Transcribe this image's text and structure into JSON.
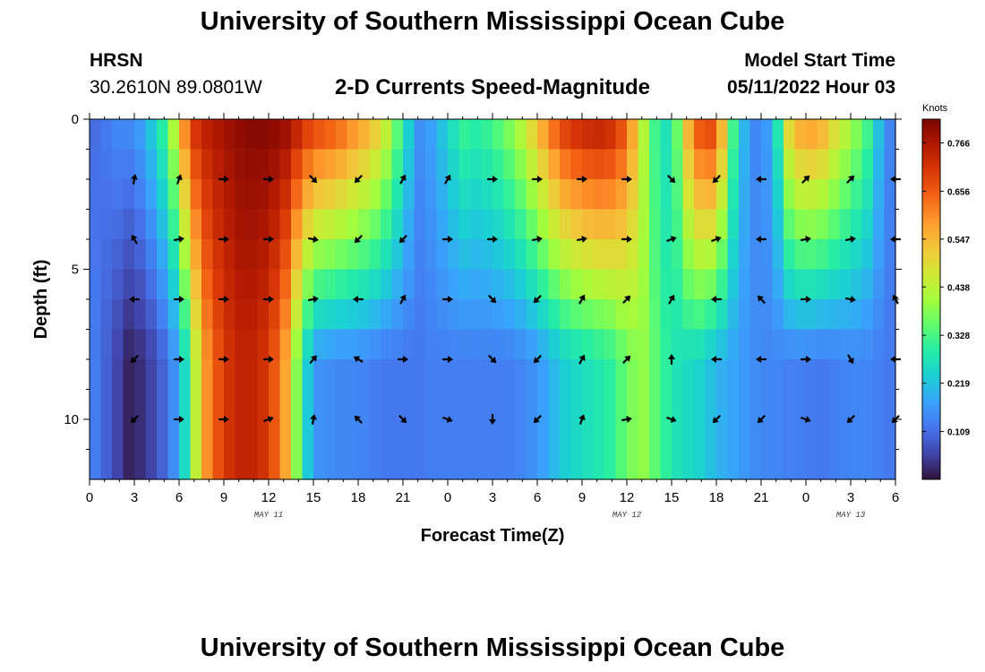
{
  "header": {
    "title": "University of Southern Mississippi Ocean Cube",
    "station": "HRSN",
    "coordinates": "30.2610N  89.0801W",
    "subtitle": "2-D Currents Speed-Magnitude",
    "start_label": "Model Start Time",
    "start_value": "05/11/2022 Hour 03"
  },
  "footer": {
    "title": "University of Southern Mississippi Ocean Cube"
  },
  "colors": {
    "palette": [
      "#30123b",
      "#4145ab",
      "#4675ed",
      "#39a2fc",
      "#1bcfd4",
      "#24eca6",
      "#61fc6c",
      "#a4fc3b",
      "#d1e834",
      "#f3c63a",
      "#fe9b2d",
      "#f36315",
      "#d93806",
      "#b11901",
      "#7a0403"
    ],
    "arrow": "#000000",
    "frame": "#000000"
  },
  "chart_data": {
    "type": "heatmap",
    "title": "2-D Currents Speed-Magnitude",
    "xlabel": "Forecast Time(Z)",
    "ylabel": "Depth (ft)",
    "x_range_hours": [
      0,
      54
    ],
    "ylim": [
      0,
      12
    ],
    "x_ticks": [
      {
        "hour": 0,
        "label": "0"
      },
      {
        "hour": 3,
        "label": "3"
      },
      {
        "hour": 6,
        "label": "6"
      },
      {
        "hour": 9,
        "label": "9"
      },
      {
        "hour": 12,
        "label": "12"
      },
      {
        "hour": 15,
        "label": "15"
      },
      {
        "hour": 18,
        "label": "18"
      },
      {
        "hour": 21,
        "label": "21"
      },
      {
        "hour": 24,
        "label": "0"
      },
      {
        "hour": 27,
        "label": "3"
      },
      {
        "hour": 30,
        "label": "6"
      },
      {
        "hour": 33,
        "label": "9"
      },
      {
        "hour": 36,
        "label": "12"
      },
      {
        "hour": 39,
        "label": "15"
      },
      {
        "hour": 42,
        "label": "18"
      },
      {
        "hour": 45,
        "label": "21"
      },
      {
        "hour": 48,
        "label": "0"
      },
      {
        "hour": 51,
        "label": "3"
      },
      {
        "hour": 54,
        "label": "6"
      }
    ],
    "y_ticks": [
      {
        "depth": 0,
        "label": "0"
      },
      {
        "depth": 5,
        "label": "5"
      },
      {
        "depth": 10,
        "label": "10"
      }
    ],
    "date_labels": [
      {
        "hour": 12,
        "label": "MAY 11"
      },
      {
        "hour": 36,
        "label": "MAY 12"
      },
      {
        "hour": 51,
        "label": "MAY 13"
      }
    ],
    "colorbar": {
      "title": "Knots",
      "min": 0.0,
      "max": 0.82,
      "ticks": [
        0.109,
        0.219,
        0.328,
        0.438,
        0.547,
        0.656,
        0.766
      ]
    },
    "speed_profile": {
      "hours": [
        0,
        1,
        2,
        2.5,
        3,
        4,
        5,
        6,
        6.5,
        7,
        8,
        9,
        10,
        11,
        12,
        13,
        13.5,
        14,
        14.5,
        15,
        16,
        17,
        18,
        19,
        20,
        21,
        22,
        23,
        24,
        25,
        26,
        27,
        28,
        29,
        30,
        31,
        32,
        33,
        34,
        35,
        36,
        37,
        38,
        39,
        40,
        41,
        42,
        43,
        44,
        45,
        46,
        47,
        48,
        49,
        50,
        51,
        52,
        53,
        54
      ],
      "surface": [
        0.1,
        0.12,
        0.15,
        0.15,
        0.15,
        0.22,
        0.32,
        0.5,
        0.66,
        0.72,
        0.76,
        0.78,
        0.8,
        0.81,
        0.81,
        0.8,
        0.78,
        0.75,
        0.72,
        0.7,
        0.68,
        0.65,
        0.6,
        0.55,
        0.45,
        0.3,
        0.15,
        0.18,
        0.25,
        0.32,
        0.3,
        0.33,
        0.38,
        0.45,
        0.55,
        0.65,
        0.72,
        0.75,
        0.76,
        0.74,
        0.66,
        0.45,
        0.3,
        0.25,
        0.55,
        0.7,
        0.7,
        0.35,
        0.18,
        0.12,
        0.25,
        0.55,
        0.6,
        0.58,
        0.5,
        0.42,
        0.35,
        0.2,
        0.1
      ],
      "bottom": [
        0.14,
        0.1,
        0.05,
        0.02,
        0.02,
        0.05,
        0.1,
        0.18,
        0.28,
        0.42,
        0.62,
        0.7,
        0.74,
        0.74,
        0.7,
        0.6,
        0.48,
        0.35,
        0.25,
        0.16,
        0.15,
        0.14,
        0.14,
        0.13,
        0.12,
        0.12,
        0.12,
        0.13,
        0.13,
        0.13,
        0.13,
        0.13,
        0.13,
        0.14,
        0.16,
        0.2,
        0.24,
        0.26,
        0.28,
        0.3,
        0.36,
        0.4,
        0.34,
        0.28,
        0.26,
        0.24,
        0.2,
        0.18,
        0.16,
        0.14,
        0.14,
        0.13,
        0.13,
        0.12,
        0.13,
        0.14,
        0.14,
        0.13,
        0.12
      ],
      "bottom_depth_ft": 8
    },
    "vector_rows_depth_ft": [
      2,
      4,
      6,
      8,
      10
    ],
    "vector_cols_hours": [
      3,
      6,
      9,
      12,
      15,
      18,
      21,
      24,
      27,
      30,
      33,
      36,
      39,
      42,
      45,
      48,
      51,
      54
    ],
    "vector_directions_deg": [
      [
        10,
        20,
        90,
        90,
        135,
        225,
        30,
        30,
        90,
        90,
        90,
        90,
        135,
        225,
        270,
        45,
        45,
        270
      ],
      [
        330,
        80,
        90,
        90,
        100,
        225,
        225,
        90,
        90,
        80,
        80,
        90,
        70,
        70,
        270,
        80,
        80,
        270
      ],
      [
        270,
        90,
        90,
        90,
        80,
        270,
        30,
        90,
        135,
        225,
        30,
        45,
        30,
        270,
        315,
        90,
        100,
        330
      ],
      [
        225,
        90,
        90,
        90,
        40,
        300,
        90,
        90,
        135,
        225,
        30,
        45,
        0,
        270,
        270,
        90,
        150,
        270
      ],
      [
        225,
        90,
        90,
        70,
        10,
        315,
        135,
        110,
        180,
        225,
        20,
        80,
        110,
        225,
        225,
        110,
        225,
        225
      ]
    ]
  }
}
